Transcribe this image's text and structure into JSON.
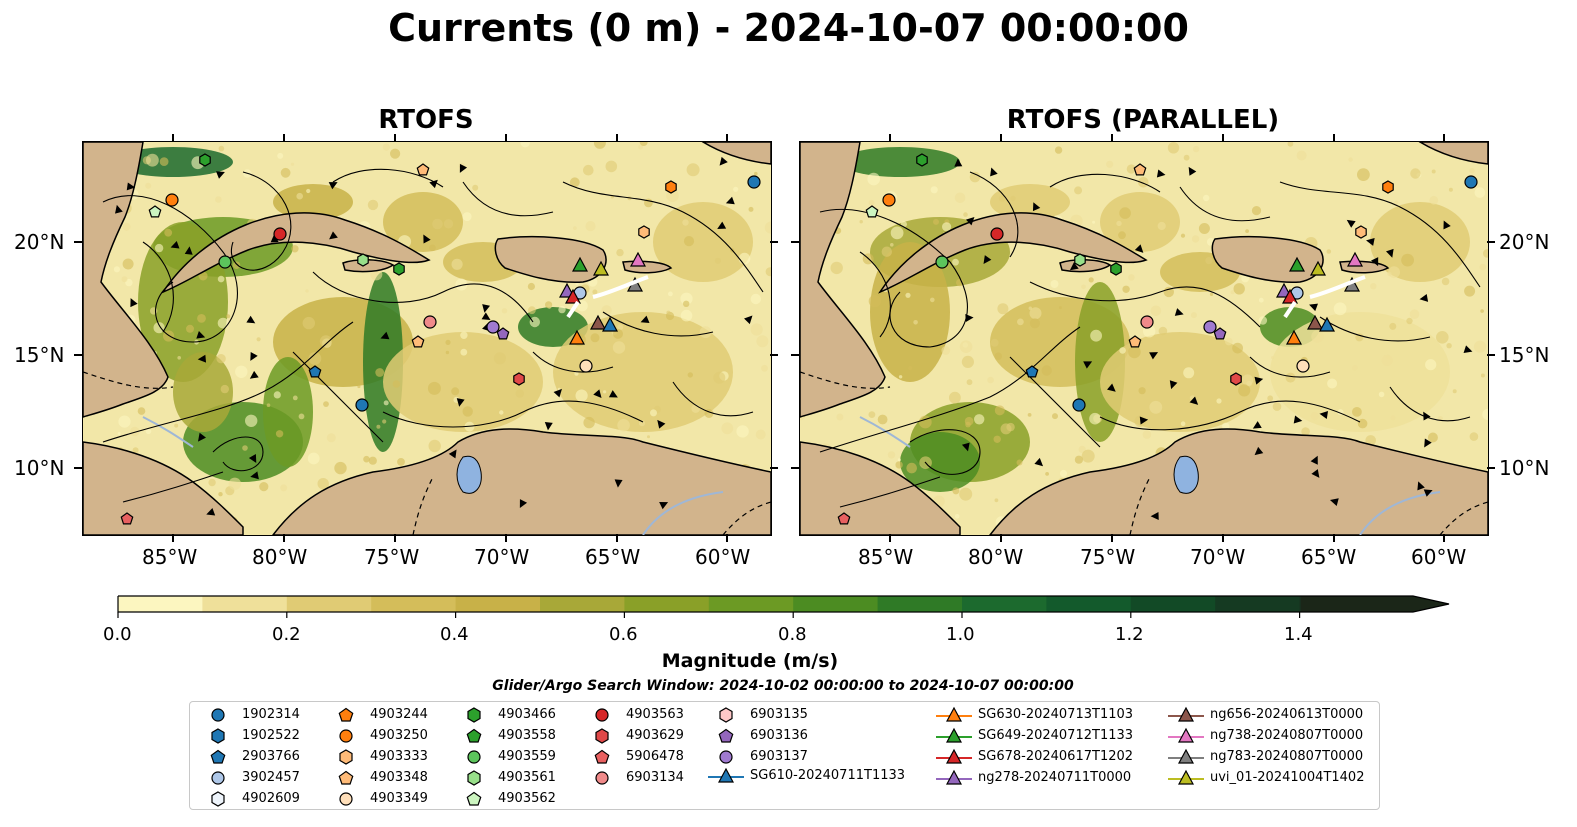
{
  "title": "Currents (0 m) - 2024-10-07 00:00:00",
  "panels": [
    {
      "title": "RTOFS"
    },
    {
      "title": "RTOFS (PARALLEL)"
    }
  ],
  "axes": {
    "lat_labels": [
      "20°N",
      "15°N",
      "10°N"
    ],
    "lon_labels": [
      "85°W",
      "80°W",
      "75°W",
      "70°W",
      "65°W",
      "60°W"
    ]
  },
  "colorbar": {
    "title": "Magnitude (m/s)",
    "tick_labels": [
      "0.0",
      "0.2",
      "0.4",
      "0.6",
      "0.8",
      "1.0",
      "1.2",
      "1.4"
    ],
    "colors": [
      "#fcf6c0",
      "#efe09a",
      "#e0cb74",
      "#d4bd5a",
      "#c8b148",
      "#a8a838",
      "#8aa028",
      "#6c9a24",
      "#4c8c22",
      "#2f7a26",
      "#1c6a2e",
      "#135a2c",
      "#124a26",
      "#153a22",
      "#182e1e",
      "#1b2618"
    ],
    "range": [
      0,
      1.5
    ]
  },
  "search_window": "Glider/Argo Search Window: 2024-10-02 00:00:00 to 2024-10-07 00:00:00",
  "legend": [
    {
      "label": "1902314",
      "marker": "circle",
      "color": "#1f77b4"
    },
    {
      "label": "1902522",
      "marker": "hexagon",
      "color": "#1f77b4"
    },
    {
      "label": "2903766",
      "marker": "pentagon",
      "color": "#1f77b4"
    },
    {
      "label": "3902457",
      "marker": "circle",
      "color": "#aec7e8"
    },
    {
      "label": "4902609",
      "marker": "hexagon",
      "color": "#aec7e8"
    },
    {
      "label": "4903244",
      "marker": "pentagon",
      "color": "#ff7f0e"
    },
    {
      "label": "4903250",
      "marker": "circle",
      "color": "#ff7f0e"
    },
    {
      "label": "4903333",
      "marker": "hexagon",
      "color": "#ffbb78"
    },
    {
      "label": "4903348",
      "marker": "pentagon",
      "color": "#ffbb78"
    },
    {
      "label": "4903349",
      "marker": "circle",
      "color": "#ffdfba"
    },
    {
      "label": "4903466",
      "marker": "hexagon",
      "color": "#2ca02c"
    },
    {
      "label": "4903558",
      "marker": "pentagon",
      "color": "#2ca02c"
    },
    {
      "label": "4903559",
      "marker": "circle",
      "color": "#5cc45c"
    },
    {
      "label": "4903561",
      "marker": "hexagon",
      "color": "#98df8a"
    },
    {
      "label": "4903562",
      "marker": "pentagon",
      "color": "#ccf5c0"
    },
    {
      "label": "4903563",
      "marker": "circle",
      "color": "#d62728"
    },
    {
      "label": "4903629",
      "marker": "hexagon",
      "color": "#e04848"
    },
    {
      "label": "5906478",
      "marker": "pentagon",
      "color": "#e86060"
    },
    {
      "label": "6903134",
      "marker": "circle",
      "color": "#f08a8a"
    },
    {
      "label": "6903135",
      "marker": "hexagon",
      "color": "#ffc8c8"
    },
    {
      "label": "6903136",
      "marker": "pentagon",
      "color": "#9467bd"
    },
    {
      "label": "6903137",
      "marker": "circle",
      "color": "#a07ad0"
    },
    {
      "label": "SG610-20240711T1133",
      "marker": "triangle-line",
      "color": "#1f77b4"
    },
    {
      "label": "SG630-20240713T1103",
      "marker": "triangle-line",
      "color": "#ff7f0e"
    },
    {
      "label": "SG649-20240712T1133",
      "marker": "triangle-line",
      "color": "#2ca02c"
    },
    {
      "label": "SG678-20240617T1202",
      "marker": "triangle-line",
      "color": "#d62728"
    },
    {
      "label": "ng278-20240711T0000",
      "marker": "triangle-line",
      "color": "#9467bd"
    },
    {
      "label": "ng656-20240613T0000",
      "marker": "triangle-line",
      "color": "#8c564b"
    },
    {
      "label": "ng738-20240807T0000",
      "marker": "triangle-line",
      "color": "#e377c2"
    },
    {
      "label": "ng783-20240807T0000",
      "marker": "triangle-line",
      "color": "#7f7f7f"
    },
    {
      "label": "uvi_01-20241004T1402",
      "marker": "triangle-line",
      "color": "#bcbd22"
    }
  ]
}
